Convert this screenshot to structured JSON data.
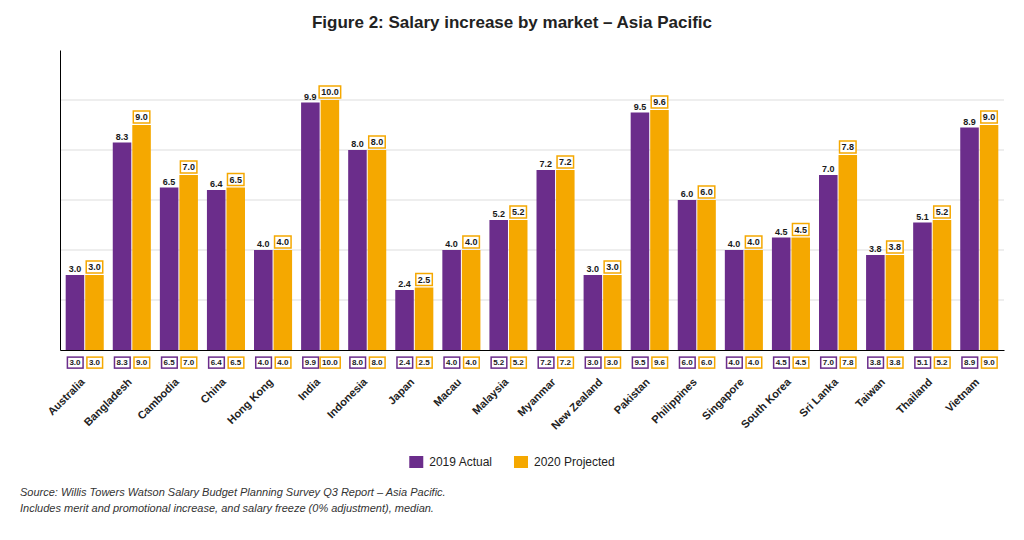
{
  "chart_data": {
    "type": "bar",
    "title": "Figure 2: Salary increase by market – Asia Pacific",
    "categories": [
      "Australia",
      "Bangladesh",
      "Cambodia",
      "China",
      "Hong Kong",
      "India",
      "Indonesia",
      "Japan",
      "Macau",
      "Malaysia",
      "Myanmar",
      "New Zealand",
      "Pakistan",
      "Philippines",
      "Singapore",
      "South Korea",
      "Sri Lanka",
      "Taiwan",
      "Thailand",
      "Vietnam"
    ],
    "series": [
      {
        "name": "2019 Actual",
        "color": "#6B2D8B",
        "values": [
          3.0,
          8.3,
          6.5,
          6.4,
          4.0,
          9.9,
          8.0,
          2.4,
          4.0,
          5.2,
          7.2,
          3.0,
          9.5,
          6.0,
          4.0,
          4.5,
          7.0,
          3.8,
          5.1,
          8.9
        ],
        "value_labels": [
          "3.0",
          "8.3",
          "6.5",
          "6.4",
          "4.0",
          "9.9",
          "8.0",
          "2.4",
          "4.0",
          "5.2",
          "7.2",
          "3.0",
          "9.5",
          "6.0",
          "4.0",
          "4.5",
          "7.0",
          "3.8",
          "5.1",
          "8.9"
        ]
      },
      {
        "name": "2020 Projected",
        "color": "#F5A800",
        "values": [
          3.0,
          9.0,
          7.0,
          6.5,
          4.0,
          10.0,
          8.0,
          2.5,
          4.0,
          5.2,
          7.2,
          3.0,
          9.6,
          6.0,
          4.0,
          4.5,
          7.8,
          3.8,
          5.2,
          9.0
        ],
        "value_labels": [
          "3.0",
          "9.0",
          "7.0",
          "6.5",
          "4.0",
          "10.0",
          "8.0",
          "2.5",
          "4.0",
          "5.2",
          "7.2",
          "3.0",
          "9.6",
          "6.0",
          "4.0",
          "4.5",
          "7.8",
          "3.8",
          "5.2",
          "9.0"
        ]
      }
    ],
    "ylim": [
      0,
      12.0
    ],
    "yticks": [
      2,
      4,
      6,
      8,
      10
    ],
    "grid": true,
    "legend": "bottom",
    "data_labels": true,
    "tick_labels": "x",
    "annotations": [
      "Source: Willis Towers Watson Salary Budget Planning Survey Q3 Report – Asia Pacific.",
      "Includes merit and promotional increase, and salary freeze (0% adjustment), median."
    ]
  }
}
